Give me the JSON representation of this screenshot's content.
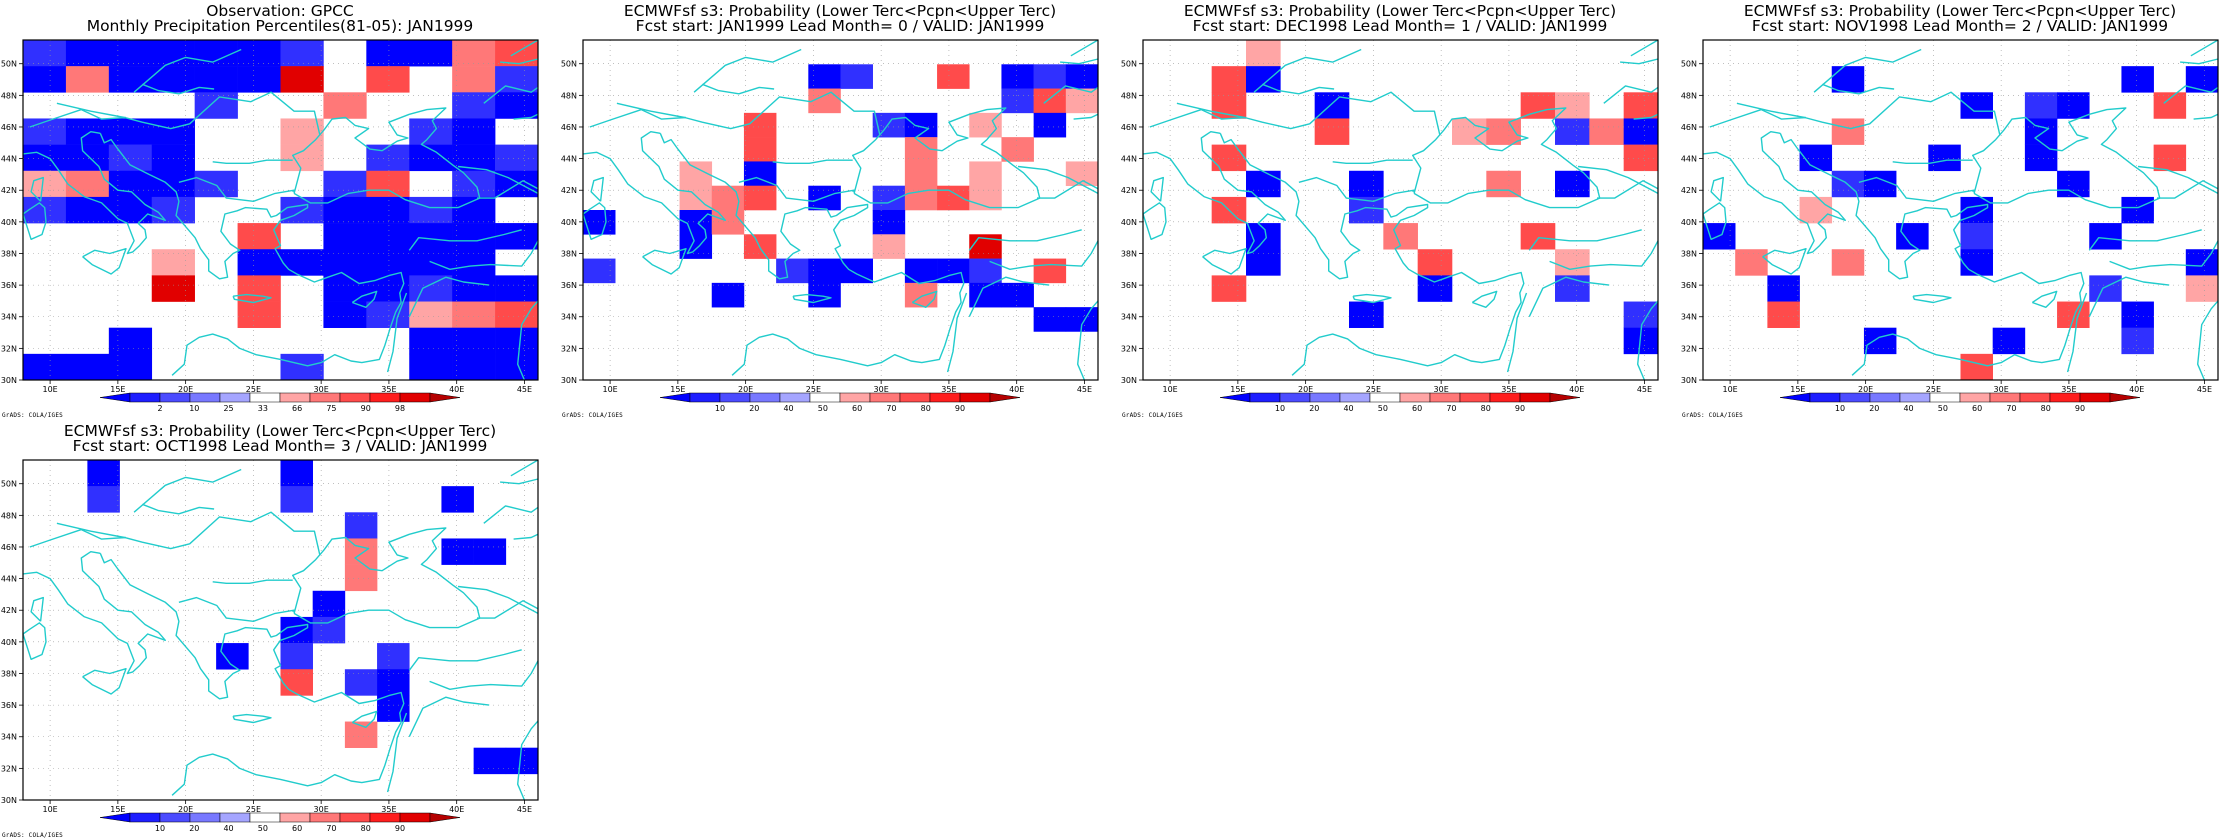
{
  "legend_colors": [
    "#0000ff",
    "#1e1eff",
    "#4b4bff",
    "#7878ff",
    "#a5a5ff",
    "#ffffff",
    "#ffa5a5",
    "#ff7878",
    "#ff4b4b",
    "#ff1e1e",
    "#e10000",
    "#b40000"
  ],
  "x_ticks": [
    "10E",
    "15E",
    "20E",
    "25E",
    "30E",
    "35E",
    "40E",
    "45E"
  ],
  "y_ticks": [
    "30N",
    "32N",
    "34N",
    "36N",
    "38N",
    "40N",
    "42N",
    "44N",
    "46N",
    "48N",
    "50N"
  ],
  "credit": "GrADS: COLA/IGES",
  "coastline_color": "#22cccc",
  "panels": [
    {
      "title_line1": "Observation: GPCC",
      "title_line2": "Monthly Precipitation Percentiles(81-05): JAN1999",
      "legend_labels": [
        "2",
        "10",
        "25",
        "33",
        "66",
        "75",
        "90",
        "98"
      ],
      "grid": [
        "5544445.5466",
        "5644447.6.65",
        "....5..6..55",
        "5444..6..55.",
        "5555..6.5555",
        "66555..56.54",
        "5555..55554.",
        ".....6.54444",
        "...6.544454.",
        "...7.6.44555",
        ".....6.55666",
        "..5......544",
        "444...5..445"
      ]
    },
    {
      "title_line1": "ECMWFsf s3: Probability (Lower Terc<Pcpn<Upper Terc)",
      "title_line2": "Fcst start: JAN1999  Lead Month= 0 / VALID: JAN1999",
      "legend_labels": [
        "10",
        "20",
        "40",
        "50",
        "60",
        "70",
        "80",
        "90"
      ],
      "grid": [
        "................",
        ".......55..6.555",
        ".......6.....566",
        ".....6...55.6.5.",
        ".....6....6..6..",
        "...6.5....6.6..6",
        "...666.5.5666...",
        "5..56....5......",
        "...5.6...6..7...",
        "5.....555.555.6.",
        "....5..5..6.55..",
        "..............55",
        "................",
        "................"
      ]
    },
    {
      "title_line1": "ECMWFsf s3: Probability (Lower Terc<Pcpn<Upper Terc)",
      "title_line2": "Fcst start: DEC1998  Lead Month= 1 / VALID: JAN1999",
      "legend_labels": [
        "10",
        "20",
        "40",
        "50",
        "60",
        "70",
        "80",
        "90"
      ],
      "grid": [
        "...6...........",
        "..65...........",
        "..6..5.....66.6",
        ".....6...66.565",
        "..6...........6",
        "...5..5...6.5..",
        "..6...5........",
        "...5...6...6...",
        "...5....6...6..",
        "..6.....5...5..",
        "......5.......5",
        "..............5",
        "..............."
      ]
    },
    {
      "title_line1": "ECMWFsf s3: Probability (Lower Terc<Pcpn<Upper Terc)",
      "title_line2": "Fcst start: NOV1998  Lead Month= 2 / VALID: JAN1999",
      "legend_labels": [
        "10",
        "20",
        "40",
        "50",
        "60",
        "70",
        "80",
        "90"
      ],
      "grid": [
        "................",
        "....5........5.5",
        "........5.55..6.",
        "....6.....5.....",
        "...5...5..5...6.",
        "....55.....5....",
        "...6....5....5..",
        "5.....5.5...5...",
        ".6..6...5......5",
        "..5.........5..6",
        "..6........6.5..",
        ".....5...5...5..",
        "........6......."
      ]
    },
    {
      "title_line1": "ECMWFsf s3: Probability (Lower Terc<Pcpn<Upper Terc)",
      "title_line2": "Fcst start: OCT1998  Lead Month= 3 / VALID: JAN1999",
      "legend_labels": [
        "10",
        "20",
        "40",
        "50",
        "60",
        "70",
        "80",
        "90"
      ],
      "grid": [
        "..5.....5.......",
        "..5.....5....5..",
        "..........5.....",
        "..........6..55.",
        "..........6.....",
        ".........5......",
        "........55......",
        "......5.5..5....",
        "........6.55....",
        "...........5....",
        "..........6.....",
        "..............55",
        "................"
      ]
    }
  ]
}
